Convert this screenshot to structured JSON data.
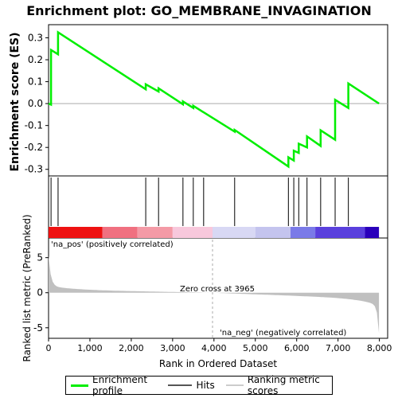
{
  "chart_data": {
    "type": "line",
    "title": "Enrichment plot: GO_MEMBRANE_INVAGINATION",
    "ylabel_top": "Enrichment score (ES)",
    "ylabel_bottom": "Ranked list metric (PreRanked)",
    "xlabel": "Rank in Ordered Dataset",
    "xlim": [
      0,
      8200
    ],
    "ylim_top": [
      -0.33,
      0.36
    ],
    "ylim_bottom": [
      -6.5,
      7.8
    ],
    "x_ticks": [
      0,
      1000,
      2000,
      3000,
      4000,
      5000,
      6000,
      7000,
      8000
    ],
    "x_tick_labels": [
      "0",
      "1,000",
      "2,000",
      "3,000",
      "4,000",
      "5,000",
      "6,000",
      "7,000",
      "8,000"
    ],
    "y_ticks_top": [
      -0.3,
      -0.2,
      -0.1,
      0.0,
      0.1,
      0.2,
      0.3
    ],
    "y_tick_labels_top": [
      "-0.3",
      "-0.2",
      "-0.1",
      "0.0",
      "0.1",
      "0.2",
      "0.3"
    ],
    "y_ticks_bottom": [
      -5,
      0,
      5
    ],
    "y_tick_labels_bottom": [
      "-5",
      "0",
      "5"
    ],
    "hits": [
      60,
      230,
      2350,
      2660,
      3250,
      3500,
      3750,
      4500,
      5800,
      5930,
      6050,
      6250,
      6580,
      6930,
      7250
    ],
    "es_profile": {
      "x": [
        0,
        60,
        60,
        230,
        230,
        2350,
        2350,
        2660,
        2660,
        3250,
        3250,
        3500,
        3500,
        3750,
        3750,
        4500,
        4500,
        5800,
        5800,
        5930,
        5930,
        6050,
        6050,
        6250,
        6250,
        6580,
        6580,
        6930,
        6930,
        7250,
        7250,
        7990
      ],
      "y": [
        0.0,
        -0.005,
        0.245,
        0.225,
        0.325,
        0.065,
        0.088,
        0.055,
        0.07,
        -0.003,
        0.01,
        -0.02,
        -0.01,
        -0.04,
        -0.04,
        -0.128,
        -0.12,
        -0.287,
        -0.245,
        -0.26,
        -0.215,
        -0.225,
        -0.183,
        -0.2,
        -0.15,
        -0.193,
        -0.122,
        -0.165,
        0.017,
        -0.02,
        0.092,
        0.0
      ]
    },
    "zero_cross_rank": 3965,
    "annotations": {
      "zero_cross": "Zero cross at 3965",
      "pos_label": "'na_pos' (positively correlated)",
      "neg_label": "'na_neg' (negatively correlated)"
    },
    "legend": {
      "enrichment": "Enrichment profile",
      "hits": "Hits",
      "ranking": "Ranking metric scores"
    },
    "colors": {
      "enrichment": "#00ee00",
      "hits": "#000000",
      "ranking": "#c0c0c0",
      "pos_text": "#dd2222",
      "neg_text": "#2222cc"
    }
  }
}
